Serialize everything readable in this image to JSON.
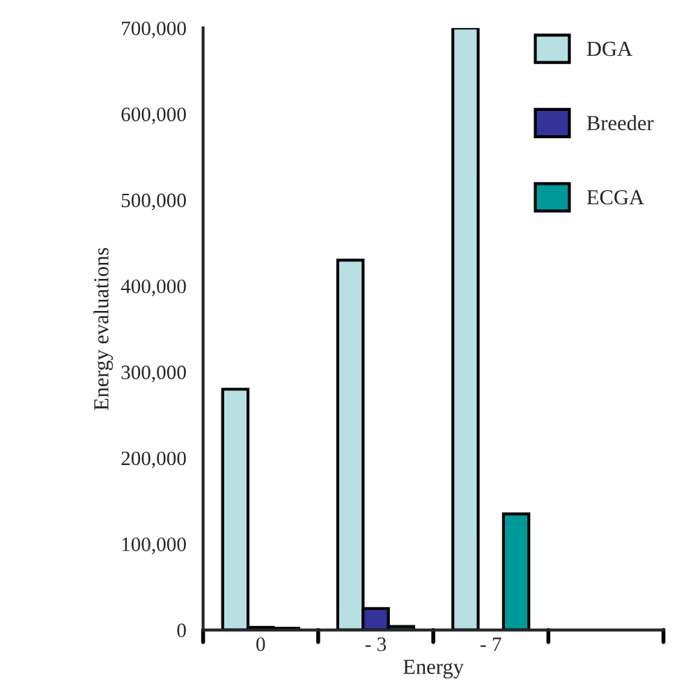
{
  "chart_data": {
    "type": "bar",
    "xlabel": "Energy",
    "ylabel": "Energy evaluations",
    "categories": [
      "0",
      "- 3",
      "- 7",
      null
    ],
    "series": [
      {
        "name": "DGA",
        "color": "#b8e0e2",
        "values": [
          280000,
          430000,
          700000,
          null
        ]
      },
      {
        "name": "Breeder",
        "color": "#333399",
        "values": [
          3000,
          25000,
          null,
          null
        ]
      },
      {
        "name": "ECGA",
        "color": "#009999",
        "values": [
          2000,
          4000,
          135000,
          null
        ]
      }
    ],
    "ylim": [
      0,
      700000
    ],
    "yticks": [
      {
        "value": 0,
        "label": "0"
      },
      {
        "value": 100000,
        "label": "100,000"
      },
      {
        "value": 200000,
        "label": "200,000"
      },
      {
        "value": 300000,
        "label": "300,000"
      },
      {
        "value": 400000,
        "label": "400,000"
      },
      {
        "value": 500000,
        "label": "500,000"
      },
      {
        "value": 600000,
        "label": "600,000"
      },
      {
        "value": 700000,
        "label": "700,000"
      }
    ],
    "grid": false,
    "legend": "right"
  }
}
